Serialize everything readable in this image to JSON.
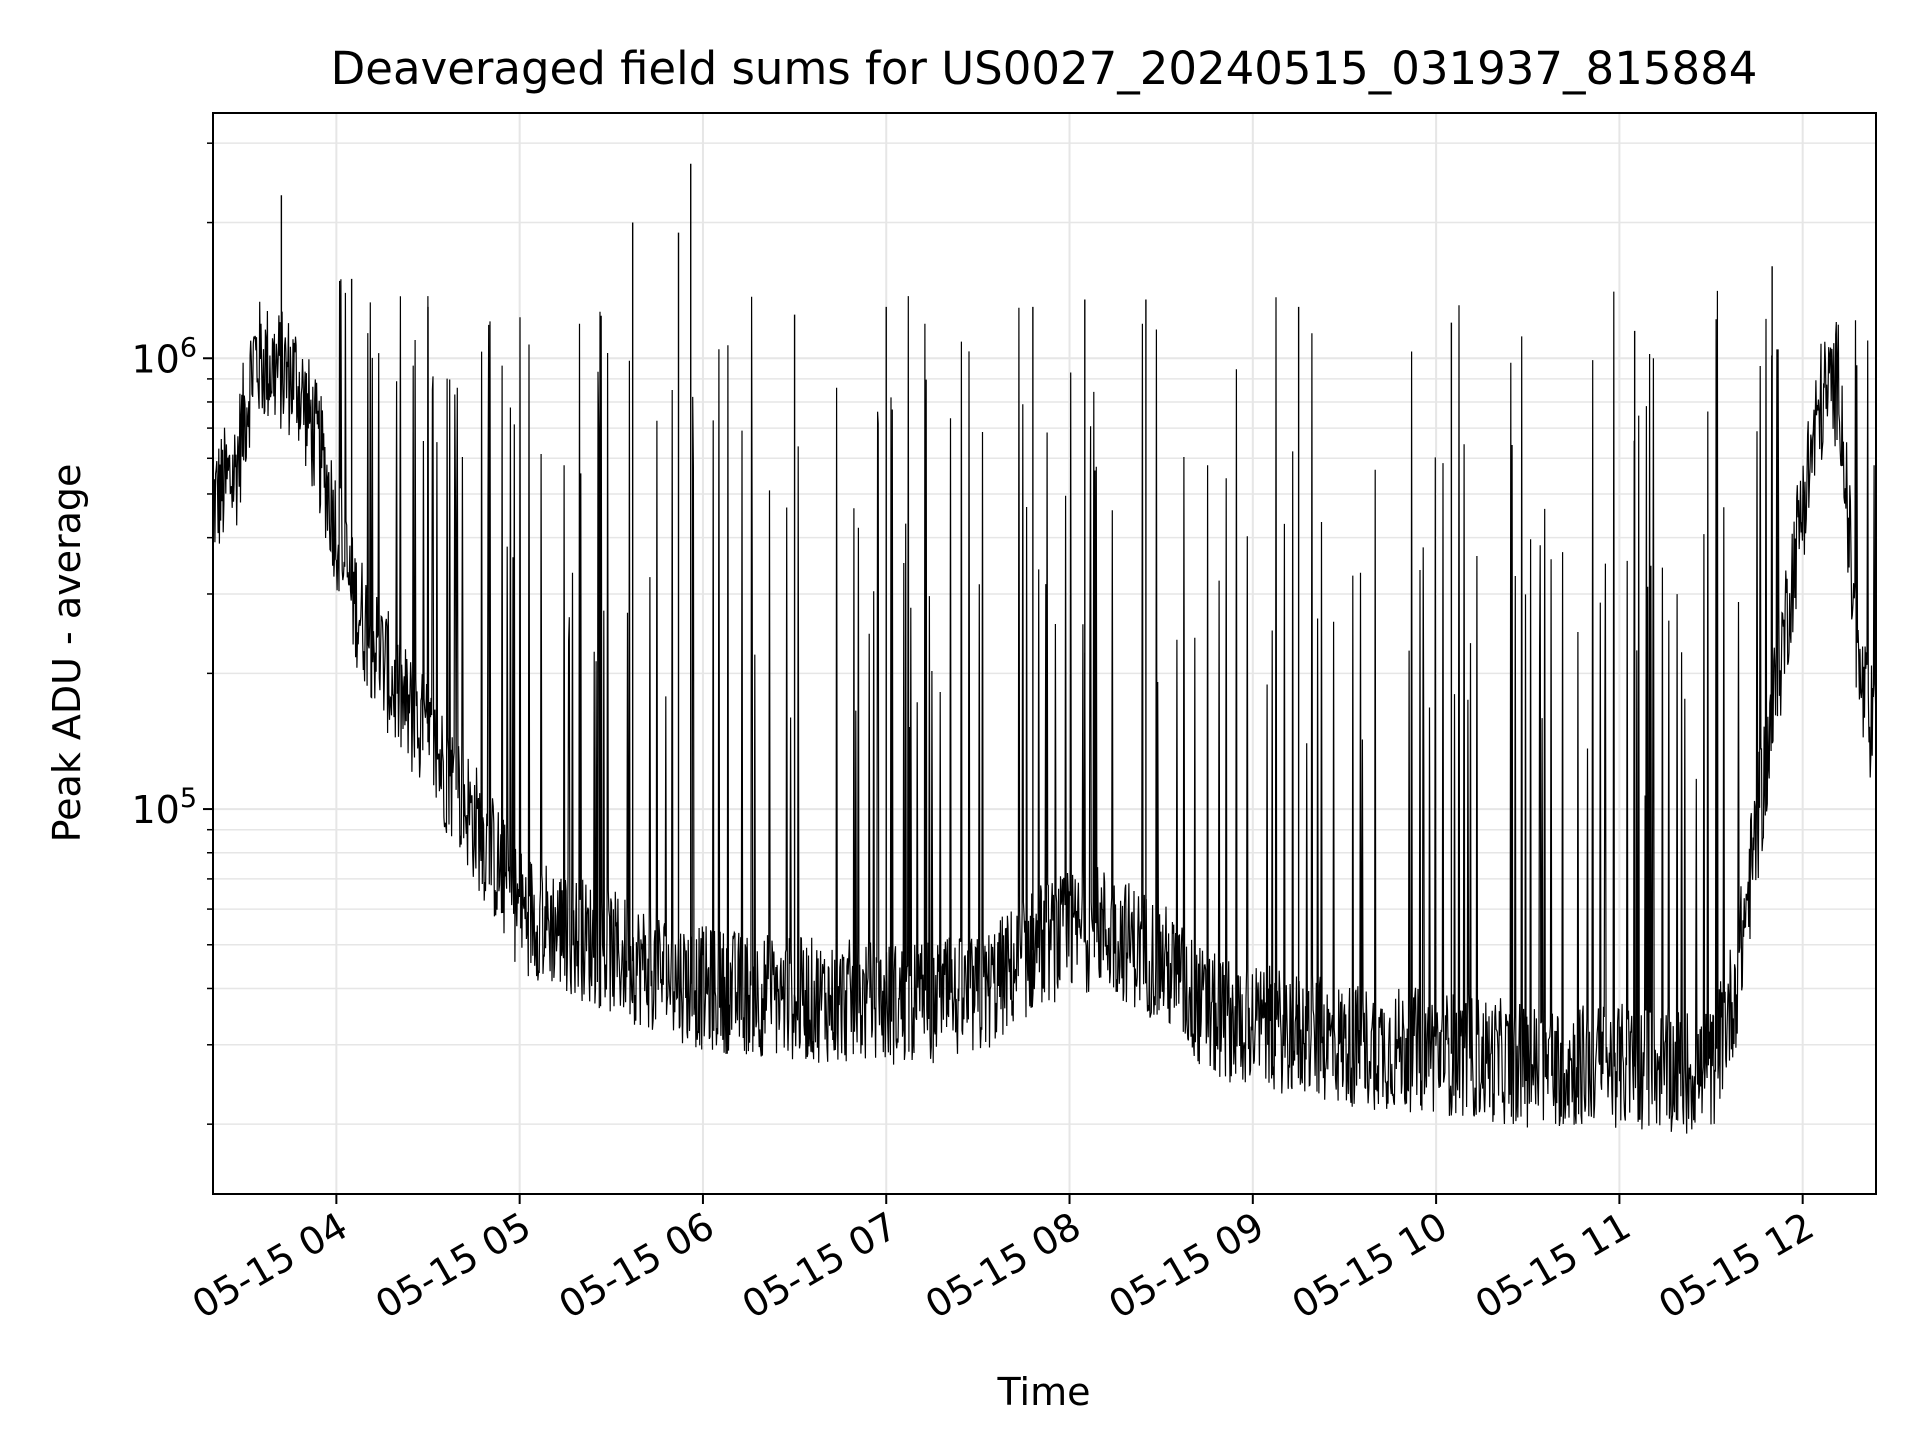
{
  "chart_data": {
    "type": "line",
    "title": "Deaveraged field sums for US0027_20240515_031937_815884",
    "xlabel": "Time",
    "ylabel": "Peak ADU - average",
    "yscale": "log",
    "grid": true,
    "line_color": "#000000",
    "x_range": [
      "2024-05-15 03:19:37",
      "2024-05-15 12:24:00"
    ],
    "ylim": [
      14000,
      3500000
    ],
    "x_ticks": [
      {
        "t": "2024-05-15 04:00",
        "label": "05-15 04"
      },
      {
        "t": "2024-05-15 05:00",
        "label": "05-15 05"
      },
      {
        "t": "2024-05-15 06:00",
        "label": "05-15 06"
      },
      {
        "t": "2024-05-15 07:00",
        "label": "05-15 07"
      },
      {
        "t": "2024-05-15 08:00",
        "label": "05-15 08"
      },
      {
        "t": "2024-05-15 09:00",
        "label": "05-15 09"
      },
      {
        "t": "2024-05-15 10:00",
        "label": "05-15 10"
      },
      {
        "t": "2024-05-15 11:00",
        "label": "05-15 11"
      },
      {
        "t": "2024-05-15 12:00",
        "label": "05-15 12"
      }
    ],
    "y_ticks": [
      {
        "value": 100000,
        "base": "10",
        "exp": "5"
      },
      {
        "value": 1000000,
        "base": "10",
        "exp": "6"
      }
    ],
    "series": [
      {
        "values": [
          {
            "x": "2024-05-15 03:20",
            "y": 480000
          },
          {
            "x": "2024-05-15 03:27",
            "y": 560000
          },
          {
            "x": "2024-05-15 03:33",
            "y": 1000000
          },
          {
            "x": "2024-05-15 03:40",
            "y": 950000
          },
          {
            "x": "2024-05-15 03:47",
            "y": 900000
          },
          {
            "x": "2024-05-15 03:55",
            "y": 600000
          },
          {
            "x": "2024-05-15 04:05",
            "y": 300000
          },
          {
            "x": "2024-05-15 04:20",
            "y": 180000
          },
          {
            "x": "2024-05-15 04:40",
            "y": 110000
          },
          {
            "x": "2024-05-15 05:00",
            "y": 60000
          },
          {
            "x": "2024-05-15 05:30",
            "y": 48000
          },
          {
            "x": "2024-05-15 06:00",
            "y": 40000
          },
          {
            "x": "2024-05-15 06:30",
            "y": 38000
          },
          {
            "x": "2024-05-15 07:00",
            "y": 37000
          },
          {
            "x": "2024-05-15 07:30",
            "y": 38000
          },
          {
            "x": "2024-05-15 07:50",
            "y": 50000
          },
          {
            "x": "2024-05-15 08:10",
            "y": 55000
          },
          {
            "x": "2024-05-15 08:30",
            "y": 46000
          },
          {
            "x": "2024-05-15 08:45",
            "y": 35000
          },
          {
            "x": "2024-05-15 09:30",
            "y": 30000
          },
          {
            "x": "2024-05-15 10:00",
            "y": 29000
          },
          {
            "x": "2024-05-15 10:30",
            "y": 27000
          },
          {
            "x": "2024-05-15 11:00",
            "y": 27000
          },
          {
            "x": "2024-05-15 11:30",
            "y": 26000
          },
          {
            "x": "2024-05-15 11:38",
            "y": 40000
          },
          {
            "x": "2024-05-15 11:45",
            "y": 90000
          },
          {
            "x": "2024-05-15 11:52",
            "y": 200000
          },
          {
            "x": "2024-05-15 12:00",
            "y": 480000
          },
          {
            "x": "2024-05-15 12:06",
            "y": 800000
          },
          {
            "x": "2024-05-15 12:12",
            "y": 900000
          },
          {
            "x": "2024-05-15 12:18",
            "y": 200000
          },
          {
            "x": "2024-05-15 12:24",
            "y": 140000
          }
        ],
        "spikes": [
          {
            "x": "2024-05-15 03:42",
            "y": 2300000
          },
          {
            "x": "2024-05-15 04:05",
            "y": 1500000
          },
          {
            "x": "2024-05-15 04:30",
            "y": 1300000
          },
          {
            "x": "2024-05-15 05:37",
            "y": 2000000
          },
          {
            "x": "2024-05-15 05:52",
            "y": 1900000
          },
          {
            "x": "2024-05-15 05:56",
            "y": 2700000
          },
          {
            "x": "2024-05-15 06:30",
            "y": 1250000
          },
          {
            "x": "2024-05-15 07:00",
            "y": 1300000
          },
          {
            "x": "2024-05-15 07:48",
            "y": 1300000
          },
          {
            "x": "2024-05-15 08:05",
            "y": 1350000
          },
          {
            "x": "2024-05-15 08:25",
            "y": 1350000
          },
          {
            "x": "2024-05-15 09:15",
            "y": 1300000
          },
          {
            "x": "2024-05-15 10:05",
            "y": 1200000
          },
          {
            "x": "2024-05-15 11:05",
            "y": 1150000
          },
          {
            "x": "2024-05-15 11:50",
            "y": 1600000
          }
        ]
      }
    ]
  }
}
